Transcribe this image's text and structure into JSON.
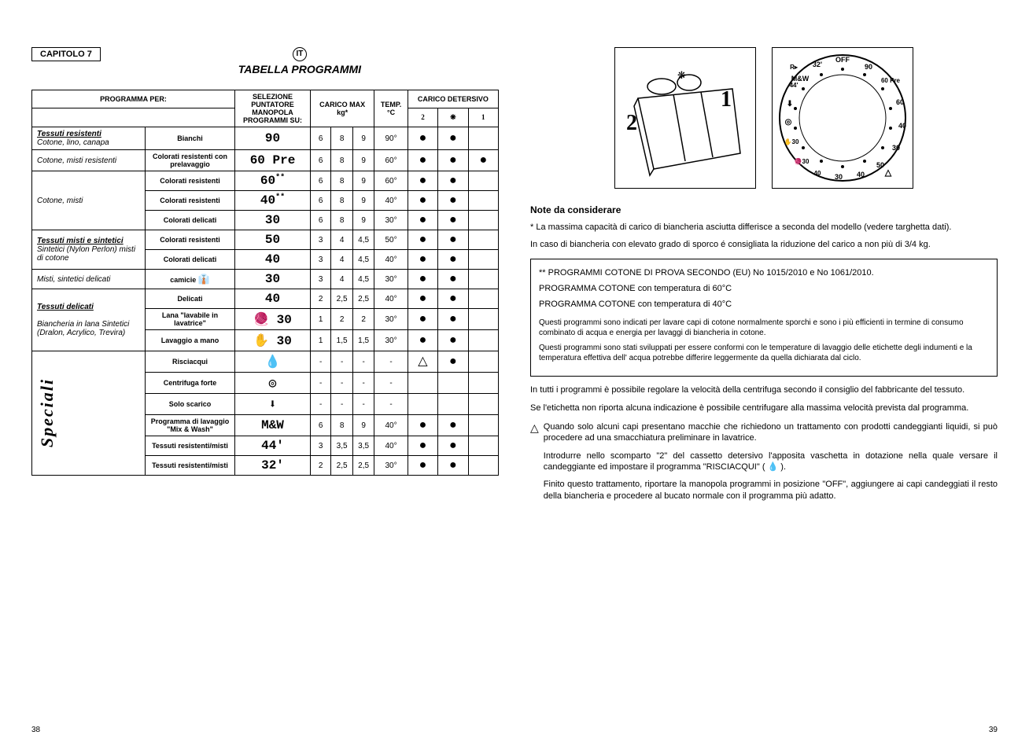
{
  "chapter": "CAPITOLO 7",
  "lang_badge": "IT",
  "title": "TABELLA PROGRAMMI",
  "headers": {
    "programma_per": "PROGRAMMA PER:",
    "selezione": "SELEZIONE PUNTATORE MANOPOLA PROGRAMMI SU:",
    "carico_max": "CARICO MAX kg*",
    "temp": "TEMP. °C",
    "carico_detersivo": "CARICO DETERSIVO",
    "det_2": "2",
    "det_flower": "❋",
    "det_1": "1"
  },
  "categories": {
    "tessuti_resistenti": "Tessuti resistenti",
    "tessuti_resistenti_sub": "Cotone, lino, canapa",
    "cotone_misti_res": "Cotone, misti resistenti",
    "cotone_misti": "Cotone, misti",
    "tessuti_misti": "Tessuti misti e sintetici",
    "tessuti_misti_sub": "Sintetici (Nylon Perlon) misti di cotone",
    "misti_sintetici": "Misti, sintetici delicati",
    "tessuti_delicati": "Tessuti delicati",
    "tessuti_delicati_sub": "Biancheria in lana Sintetici (Dralon, Acrylico, Trevira)",
    "speciali": "Speciali"
  },
  "rows": [
    {
      "desc": "Bianchi",
      "sel": "90",
      "l1": "6",
      "l2": "8",
      "l3": "9",
      "temp": "90°",
      "d2": "●",
      "df": "●",
      "d1": ""
    },
    {
      "desc": "Colorati resistenti con prelavaggio",
      "sel": "60 Pre",
      "l1": "6",
      "l2": "8",
      "l3": "9",
      "temp": "60°",
      "d2": "●",
      "df": "●",
      "d1": "●"
    },
    {
      "desc": "Colorati resistenti",
      "sel": "60",
      "sel_suffix": "**",
      "l1": "6",
      "l2": "8",
      "l3": "9",
      "temp": "60°",
      "d2": "●",
      "df": "●",
      "d1": ""
    },
    {
      "desc": "Colorati resistenti",
      "sel": "40",
      "sel_suffix": "**",
      "l1": "6",
      "l2": "8",
      "l3": "9",
      "temp": "40°",
      "d2": "●",
      "df": "●",
      "d1": ""
    },
    {
      "desc": "Colorati delicati",
      "sel": "30",
      "l1": "6",
      "l2": "8",
      "l3": "9",
      "temp": "30°",
      "d2": "●",
      "df": "●",
      "d1": ""
    },
    {
      "desc": "Colorati resistenti",
      "sel": "50",
      "l1": "3",
      "l2": "4",
      "l3": "4,5",
      "temp": "50°",
      "d2": "●",
      "df": "●",
      "d1": ""
    },
    {
      "desc": "Colorati delicati",
      "sel": "40",
      "l1": "3",
      "l2": "4",
      "l3": "4,5",
      "temp": "40°",
      "d2": "●",
      "df": "●",
      "d1": ""
    },
    {
      "desc": "camicie",
      "sel": "30",
      "l1": "3",
      "l2": "4",
      "l3": "4,5",
      "temp": "30°",
      "d2": "●",
      "df": "●",
      "d1": ""
    },
    {
      "desc": "Delicati",
      "sel": "40",
      "l1": "2",
      "l2": "2,5",
      "l3": "2,5",
      "temp": "40°",
      "d2": "●",
      "df": "●",
      "d1": ""
    },
    {
      "desc": "Lana \"lavabile in lavatrice\"",
      "sel": "🧶 30",
      "l1": "1",
      "l2": "2",
      "l3": "2",
      "temp": "30°",
      "d2": "●",
      "df": "●",
      "d1": ""
    },
    {
      "desc": "Lavaggio a mano",
      "sel": "✋ 30",
      "l1": "1",
      "l2": "1,5",
      "l3": "1,5",
      "temp": "30°",
      "d2": "●",
      "df": "●",
      "d1": ""
    },
    {
      "desc": "Risciacqui",
      "sel": "💧",
      "l1": "-",
      "l2": "-",
      "l3": "-",
      "temp": "-",
      "d2": "△",
      "df": "●",
      "d1": ""
    },
    {
      "desc": "Centrifuga forte",
      "sel": "◎",
      "l1": "-",
      "l2": "-",
      "l3": "-",
      "temp": "-",
      "d2": "",
      "df": "",
      "d1": ""
    },
    {
      "desc": "Solo scarico",
      "sel": "⬇",
      "l1": "-",
      "l2": "-",
      "l3": "-",
      "temp": "-",
      "d2": "",
      "df": "",
      "d1": ""
    },
    {
      "desc": "Programma di lavaggio \"Mix & Wash\"",
      "sel": "M&W",
      "l1": "6",
      "l2": "8",
      "l3": "9",
      "temp": "40°",
      "d2": "●",
      "df": "●",
      "d1": ""
    },
    {
      "desc": "Tessuti resistenti/misti",
      "sel": "44'",
      "l1": "3",
      "l2": "3,5",
      "l3": "3,5",
      "temp": "40°",
      "d2": "●",
      "df": "●",
      "d1": ""
    },
    {
      "desc": "Tessuti resistenti/misti",
      "sel": "32'",
      "l1": "2",
      "l2": "2,5",
      "l3": "2,5",
      "temp": "30°",
      "d2": "●",
      "df": "●",
      "d1": ""
    }
  ],
  "dial": {
    "off": "OFF",
    "r_arrow": "R▸",
    "p32": "32'",
    "p44": "44'",
    "mw": "M&W",
    "p90": "90",
    "p60pre": "60 Pre",
    "p60": "60",
    "p40": "40",
    "p30a": "30",
    "p50": "50",
    "p40b": "40",
    "p30b": "30",
    "p40c": "40",
    "p30c": "30",
    "p30d": "30"
  },
  "drawer": {
    "n1": "1",
    "n2": "2"
  },
  "notes": {
    "title": "Note da considerare",
    "n1": "* La massima capacità di carico di biancheria asciutta differisce a seconda del modello (vedere targhetta dati).",
    "n2": "In caso di biancheria con elevato grado di sporco é consigliata la riduzione del carico a non più di 3/4 kg.",
    "box1": "** PROGRAMMI COTONE DI PROVA SECONDO  (EU) No 1015/2010 e No 1061/2010.",
    "box2": "PROGRAMMA COTONE con temperatura di 60°C",
    "box3": "PROGRAMMA COTONE con temperatura di 40°C",
    "box4": "Questi programmi sono indicati per lavare capi di cotone normalmente sporchi e sono i più efficienti in termine di consumo combinato di acqua e energia per lavaggi di biancheria in cotone.",
    "box5": "Questi programmi sono stati sviluppati per essere conformi con le temperature di lavaggio delle etichette degli indumenti e la temperatura effettiva dell' acqua potrebbe differire leggermente da quella dichiarata dal ciclo.",
    "n3": "In tutti i programmi è possibile regolare la velocità della centrifuga secondo il consiglio del fabbricante del tessuto.",
    "n4": "Se l'etichetta non riporta alcuna indicazione è possibile centrifugare alla massima velocità prevista dal programma.",
    "tri1": "Quando solo alcuni capi presentano macchie che richiedono un trattamento con prodotti candeggianti liquidi, si può procedere ad una smacchiatura preliminare in lavatrice.",
    "tri2": "Introdurre nello scomparto \"2\" del cassetto detersivo l'apposita vaschetta in dotazione nella quale versare il candeggiante ed impostare il programma \"RISCIACQUI\" ( 💧 ).",
    "tri3": "Finito questo trattamento, riportare la manopola programmi in posizione \"OFF\", aggiungere ai capi candeggiati il resto della biancheria e procedere al bucato normale con il programma più adatto."
  },
  "page_left": "38",
  "page_right": "39"
}
